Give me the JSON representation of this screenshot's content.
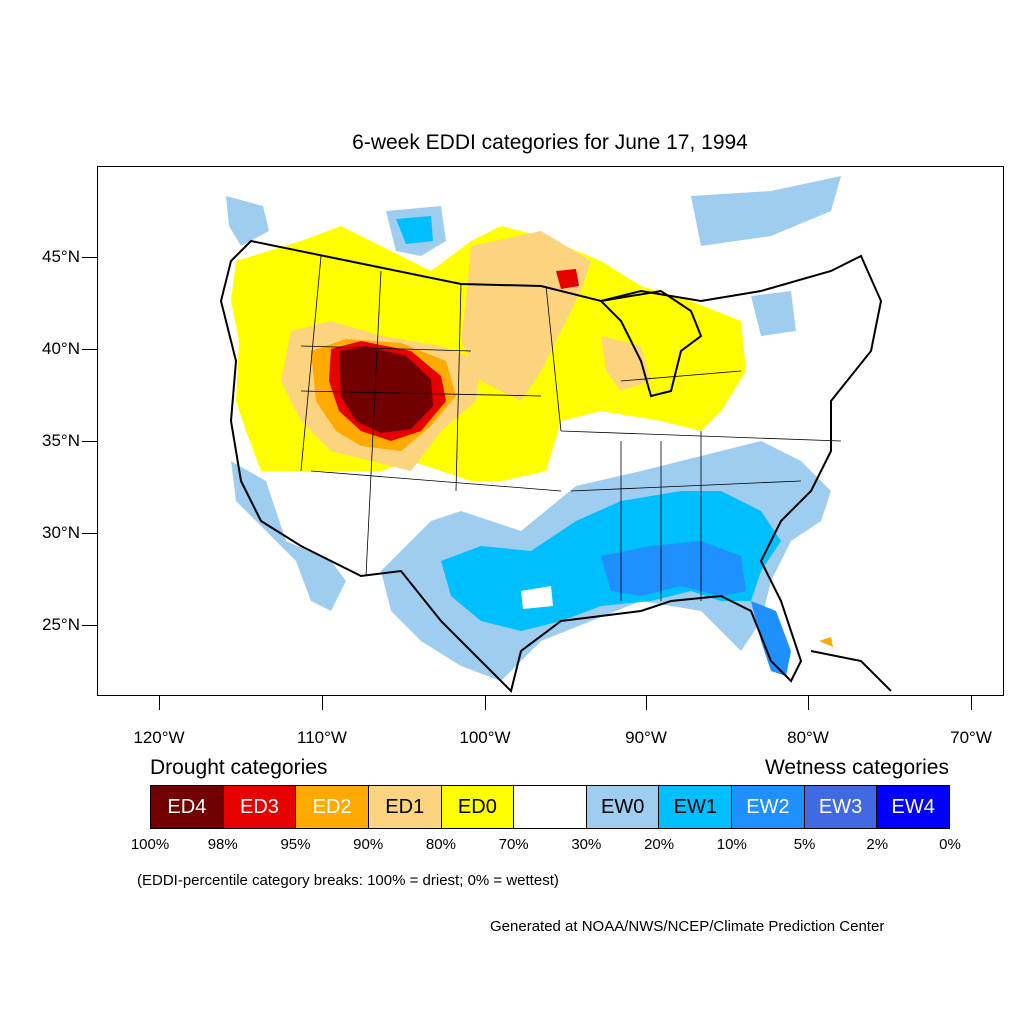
{
  "title": "6-week EDDI categories for June 17, 1994",
  "axes": {
    "lat_labels": [
      "45°N",
      "40°N",
      "35°N",
      "30°N",
      "25°N"
    ],
    "lon_labels": [
      "120°W",
      "110°W",
      "100°W",
      "90°W",
      "80°W",
      "70°W"
    ]
  },
  "map_regions": [
    {
      "name": "Northern Rockies / Great Basin",
      "category": "ED0"
    },
    {
      "name": "Northern Great Plains",
      "category": "ED1"
    },
    {
      "name": "Wyoming / Colorado / Utah core",
      "category": "ED4"
    },
    {
      "name": "Great Lakes",
      "category": "ED0"
    },
    {
      "name": "Gulf Coast / Texas / Southeast",
      "category": "EW1"
    },
    {
      "name": "Florida",
      "category": "EW2"
    },
    {
      "name": "Pacific Northwest coast",
      "category": "EW0"
    }
  ],
  "legend": {
    "drought_heading": "Drought categories",
    "wetness_heading": "Wetness categories",
    "categories": [
      {
        "label": "ED4",
        "color": "#730000",
        "text_color": "#ffffff"
      },
      {
        "label": "ED3",
        "color": "#e60000",
        "text_color": "#ffffff"
      },
      {
        "label": "ED2",
        "color": "#ffaa00",
        "text_color": "#ffffff"
      },
      {
        "label": "ED1",
        "color": "#fcd37f",
        "text_color": "#000000"
      },
      {
        "label": "ED0",
        "color": "#ffff00",
        "text_color": "#000000"
      },
      {
        "label": "",
        "color": "#ffffff",
        "text_color": "#000000"
      },
      {
        "label": "EW0",
        "color": "#9ecdf0",
        "text_color": "#000000"
      },
      {
        "label": "EW1",
        "color": "#00bfff",
        "text_color": "#000000"
      },
      {
        "label": "EW2",
        "color": "#1e90ff",
        "text_color": "#ffffff"
      },
      {
        "label": "EW3",
        "color": "#4169e1",
        "text_color": "#ffffff"
      },
      {
        "label": "EW4",
        "color": "#0000ff",
        "text_color": "#ffffff"
      }
    ],
    "breaks": [
      "100%",
      "98%",
      "95%",
      "90%",
      "80%",
      "70%",
      "30%",
      "20%",
      "10%",
      "5%",
      "2%",
      "0%"
    ]
  },
  "note": "(EDDI-percentile category breaks: 100% = driest; 0% = wettest)",
  "credit": "Generated at NOAA/NWS/NCEP/Climate Prediction Center"
}
